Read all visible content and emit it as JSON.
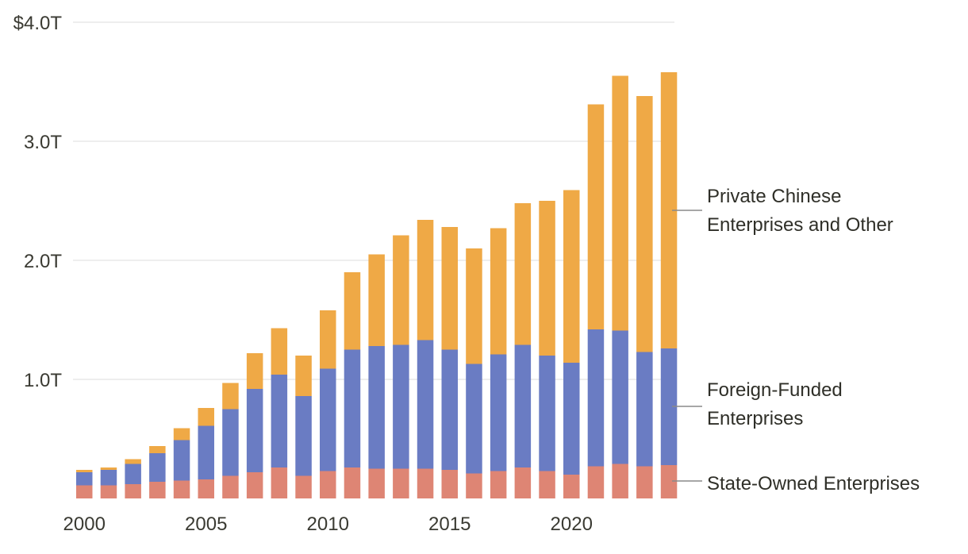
{
  "chart_data": {
    "type": "bar",
    "stacked": true,
    "title": "",
    "xlabel": "",
    "ylabel": "",
    "ylim": [
      0,
      4.0
    ],
    "y_ticks": [
      {
        "value": 1.0,
        "label": "1.0T"
      },
      {
        "value": 2.0,
        "label": "2.0T"
      },
      {
        "value": 3.0,
        "label": "3.0T"
      },
      {
        "value": 4.0,
        "label": "$4.0T"
      }
    ],
    "x_tick_labels": [
      "2000",
      "2005",
      "2010",
      "2015",
      "2020"
    ],
    "categories": [
      "2000",
      "2001",
      "2002",
      "2003",
      "2004",
      "2005",
      "2006",
      "2007",
      "2008",
      "2009",
      "2010",
      "2011",
      "2012",
      "2013",
      "2014",
      "2015",
      "2016",
      "2017",
      "2018",
      "2019",
      "2020",
      "2021",
      "2022",
      "2023",
      "2024"
    ],
    "series": [
      {
        "name": "State-Owned Enterprises",
        "color": "#de8574",
        "values": [
          0.11,
          0.11,
          0.12,
          0.14,
          0.15,
          0.16,
          0.19,
          0.22,
          0.26,
          0.19,
          0.23,
          0.26,
          0.25,
          0.25,
          0.25,
          0.24,
          0.21,
          0.23,
          0.26,
          0.23,
          0.2,
          0.27,
          0.29,
          0.27,
          0.28
        ]
      },
      {
        "name": "Foreign-Funded Enterprises",
        "color": "#6a7cc3",
        "values": [
          0.11,
          0.13,
          0.17,
          0.24,
          0.34,
          0.45,
          0.56,
          0.7,
          0.78,
          0.67,
          0.86,
          0.99,
          1.03,
          1.04,
          1.08,
          1.01,
          0.92,
          0.98,
          1.03,
          0.97,
          0.94,
          1.15,
          1.12,
          0.96,
          0.98
        ]
      },
      {
        "name": "Private Chinese Enterprises and Other",
        "color": "#efa946",
        "values": [
          0.02,
          0.02,
          0.04,
          0.06,
          0.1,
          0.15,
          0.22,
          0.3,
          0.39,
          0.34,
          0.49,
          0.65,
          0.77,
          0.92,
          1.01,
          1.03,
          0.97,
          1.06,
          1.19,
          1.3,
          1.45,
          1.89,
          2.14,
          2.15,
          2.32
        ]
      }
    ]
  },
  "legend": {
    "private_line1": "Private Chinese",
    "private_line2": "Enterprises and Other",
    "foreign_line1": "Foreign-Funded",
    "foreign_line2": "Enterprises",
    "state_line1": "State-Owned Enterprises"
  }
}
